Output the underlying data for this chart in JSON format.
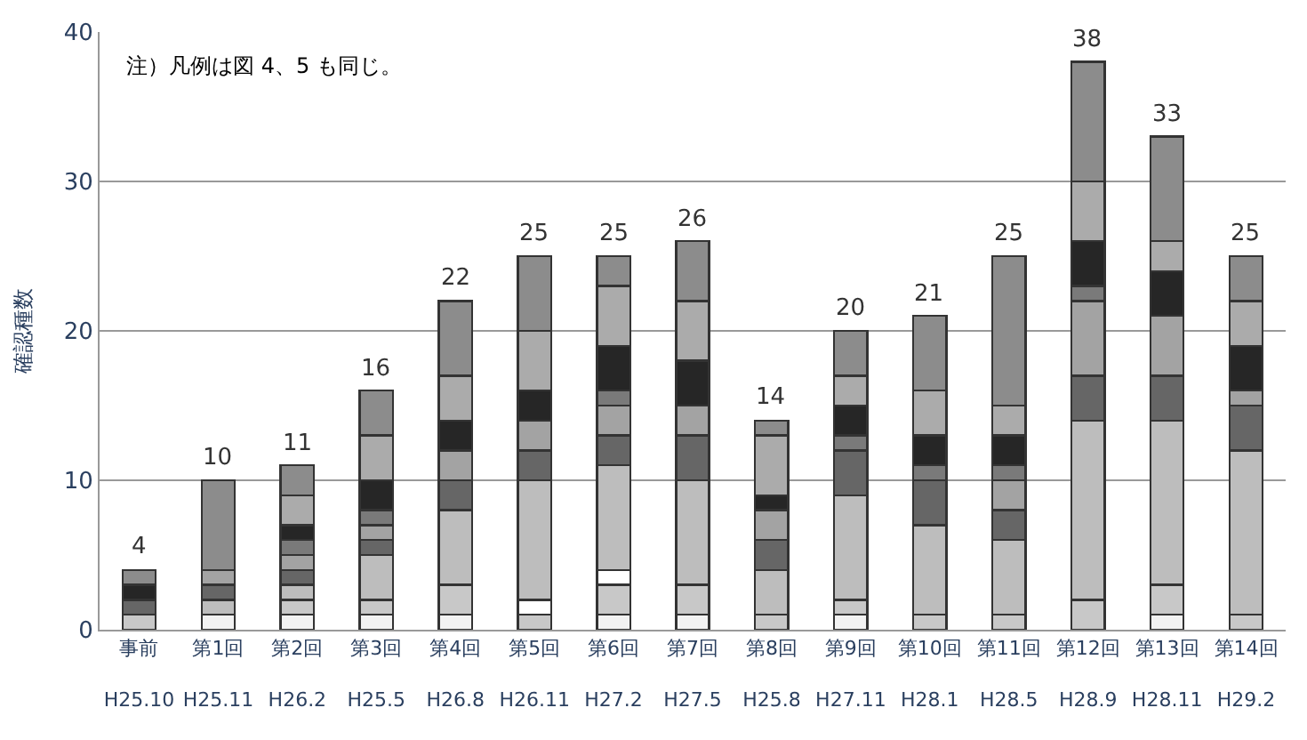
{
  "chart_data": {
    "type": "bar",
    "stacked": true,
    "ylabel": "確認種数",
    "categories": [
      "事前\nH25.10",
      "第1回\nH25.11",
      "第2回\nH26.2",
      "第3回\nH25.5",
      "第4回\nH26.8",
      "第5回\nH26.11",
      "第6回\nH27.2",
      "第7回\nH27.5",
      "第8回\nH25.8",
      "第9回\nH27.11",
      "第10回\nH28.1",
      "第11回\nH28.5",
      "第12回\nH28.9",
      "第13回\nH28.11",
      "第14回\nH29.2"
    ],
    "series": [
      {
        "color": "#f2f2f2",
        "values": [
          null,
          1,
          1,
          1,
          1,
          null,
          1,
          1,
          null,
          1,
          null,
          null,
          null,
          1,
          null
        ]
      },
      {
        "color": "#c8c8c8",
        "values": [
          1,
          null,
          1,
          1,
          2,
          1,
          2,
          2,
          1,
          1,
          1,
          1,
          2,
          2,
          1
        ]
      },
      {
        "color": "#ffffff",
        "values": [
          null,
          null,
          null,
          null,
          null,
          1,
          1,
          null,
          null,
          null,
          null,
          null,
          null,
          null,
          null
        ]
      },
      {
        "color": "#bdbdbd",
        "values": [
          null,
          1,
          1,
          3,
          5,
          8,
          7,
          7,
          3,
          7,
          6,
          5,
          12,
          11,
          11
        ]
      },
      {
        "color": "#666666",
        "values": [
          1,
          1,
          1,
          1,
          2,
          2,
          2,
          3,
          2,
          3,
          3,
          2,
          3,
          3,
          3
        ]
      },
      {
        "color": "#a3a3a3",
        "values": [
          null,
          1,
          1,
          1,
          2,
          2,
          2,
          2,
          2,
          null,
          null,
          2,
          5,
          4,
          1
        ]
      },
      {
        "color": "#7a7a7a",
        "values": [
          null,
          null,
          1,
          1,
          null,
          null,
          1,
          null,
          null,
          1,
          1,
          1,
          1,
          null,
          null
        ]
      },
      {
        "color": "#262626",
        "values": [
          1,
          null,
          1,
          2,
          2,
          2,
          3,
          3,
          1,
          2,
          2,
          2,
          3,
          3,
          3
        ]
      },
      {
        "color": "#ababab",
        "values": [
          null,
          null,
          2,
          3,
          3,
          4,
          4,
          4,
          4,
          2,
          3,
          2,
          4,
          2,
          3
        ]
      },
      {
        "color": "#8c8c8c",
        "values": [
          1,
          6,
          2,
          3,
          5,
          5,
          2,
          4,
          1,
          3,
          5,
          10,
          8,
          7,
          3
        ]
      }
    ],
    "totals": [
      "4",
      "10",
      "11",
      "16",
      "22",
      "25",
      "25",
      "26",
      "14",
      "20",
      "21",
      "25",
      "38",
      "33",
      "25"
    ],
    "ylim": [
      0,
      40
    ],
    "yticks": [
      0,
      10,
      20,
      30,
      40
    ],
    "grid": "y",
    "annotations": [
      "注）凡例は図 4、5 も同じ。"
    ]
  }
}
